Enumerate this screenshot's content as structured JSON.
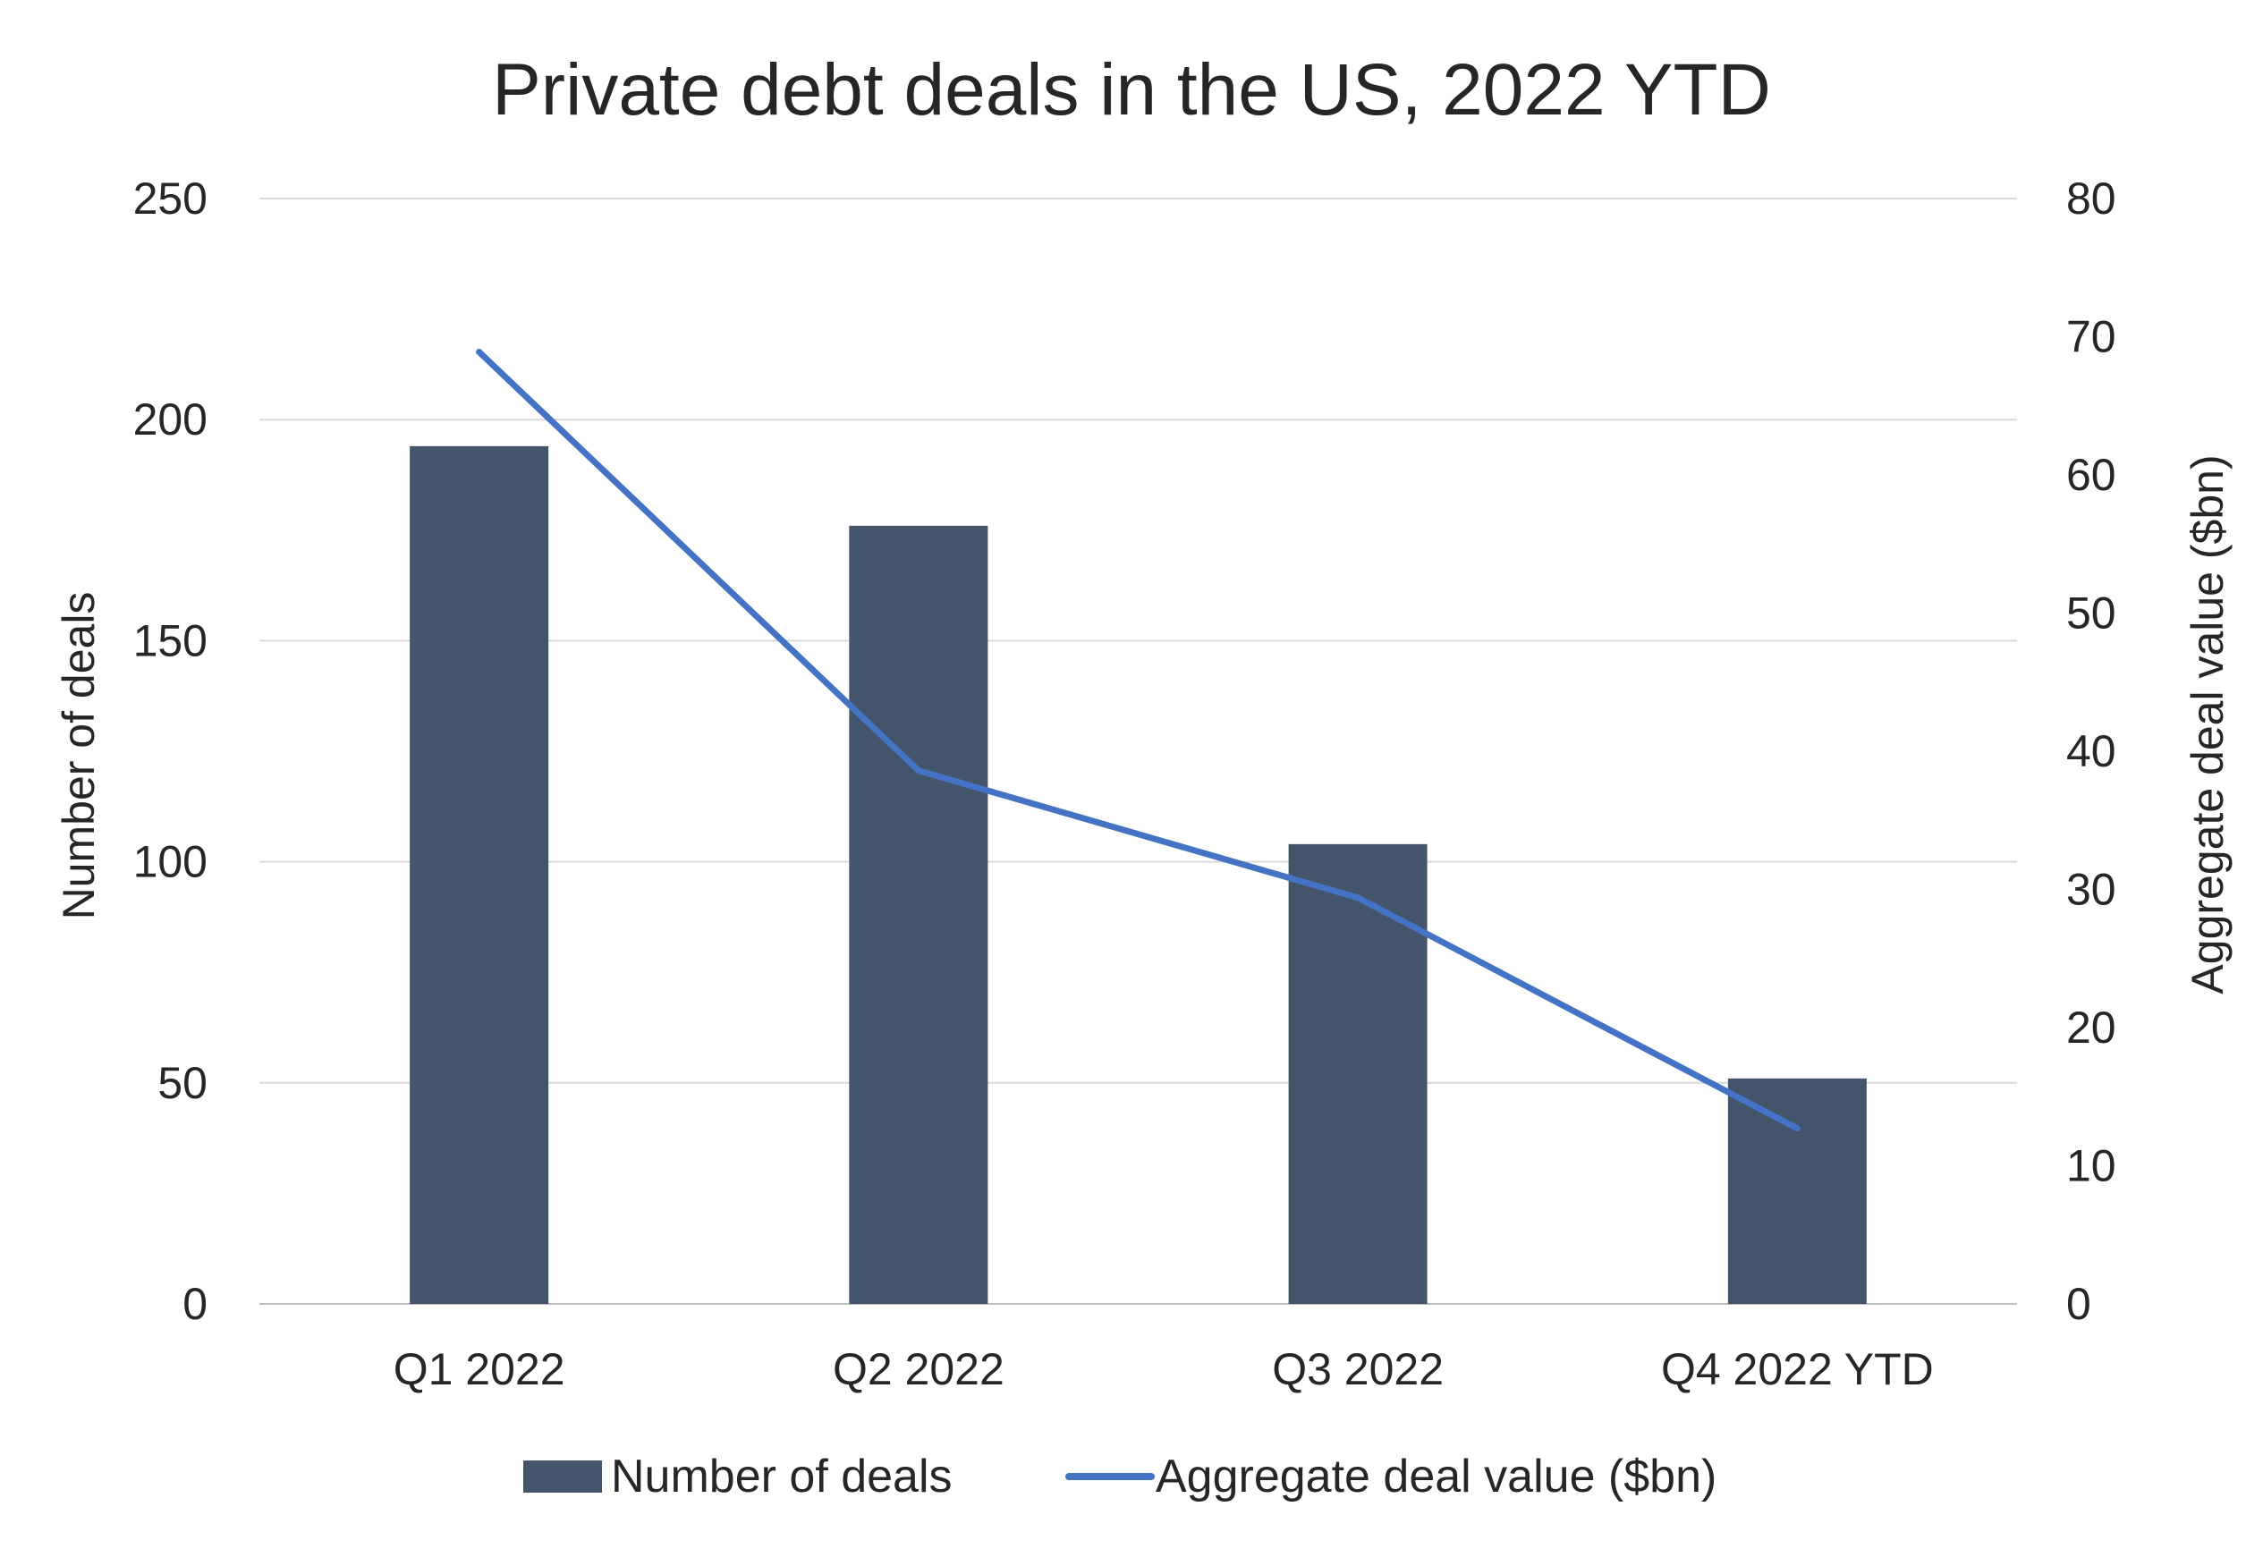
{
  "chart_data": {
    "type": "bar",
    "title": "Private debt deals in the US, 2022 YTD",
    "categories": [
      "Q1 2022",
      "Q2 2022",
      "Q3 2022",
      "Q4 2022 YTD"
    ],
    "series": [
      {
        "name": "Number of deals",
        "type": "bar",
        "axis": "left",
        "color": "#44546a",
        "values": [
          194,
          176,
          104,
          51
        ]
      },
      {
        "name": "Aggregate deal value ($bn)",
        "type": "line",
        "axis": "right",
        "color": "#4472c4",
        "values": [
          68.9,
          38.6,
          29.4,
          12.7
        ]
      }
    ],
    "ylabel": "Number of deals",
    "y2label": "Aggregate deal value ($bn)",
    "ylim": [
      0,
      250
    ],
    "y2lim": [
      0,
      80
    ],
    "yticks": [
      0,
      50,
      100,
      150,
      200,
      250
    ],
    "y2ticks": [
      0,
      10,
      20,
      30,
      40,
      50,
      60,
      70,
      80
    ],
    "grid": true,
    "legend_position": "bottom"
  }
}
